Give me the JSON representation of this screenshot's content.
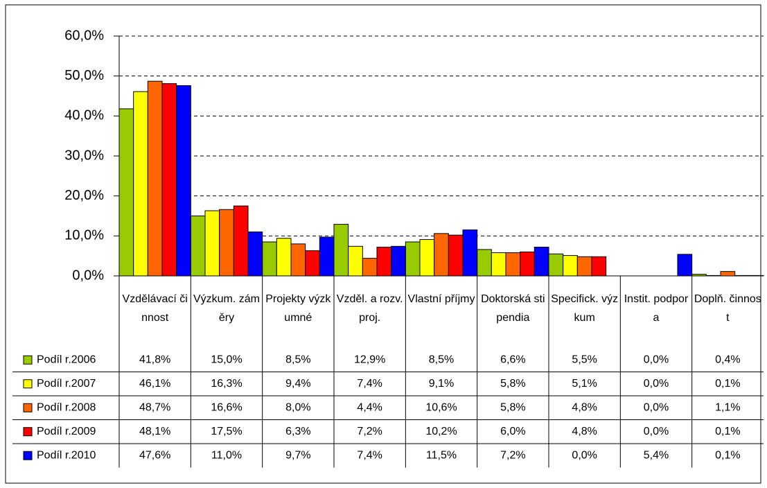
{
  "chart_data": {
    "type": "bar",
    "categories": [
      "Vzdělávací činnost",
      "Výzkum. záměry",
      "Projekty výzkumné",
      "Vzděl. a rozv. proj.",
      "Vlastní příjmy",
      "Doktorská stipendia",
      "Specifick. výzkum",
      "Instit. podpora",
      "Doplň. činnost"
    ],
    "series": [
      {
        "name": "Podíl r.2006",
        "color": "#99cc00",
        "values": [
          41.8,
          15.0,
          8.5,
          12.9,
          8.5,
          6.6,
          5.5,
          0.0,
          0.4
        ],
        "value_labels": [
          "41,8%",
          "15,0%",
          "8,5%",
          "12,9%",
          "8,5%",
          "6,6%",
          "5,5%",
          "0,0%",
          "0,4%"
        ]
      },
      {
        "name": "Podíl r.2007",
        "color": "#ffff00",
        "values": [
          46.1,
          16.3,
          9.4,
          7.4,
          9.1,
          5.8,
          5.1,
          0.0,
          0.1
        ],
        "value_labels": [
          "46,1%",
          "16,3%",
          "9,4%",
          "7,4%",
          "9,1%",
          "5,8%",
          "5,1%",
          "0,0%",
          "0,1%"
        ]
      },
      {
        "name": "Podíl r.2008",
        "color": "#ff6600",
        "values": [
          48.7,
          16.6,
          8.0,
          4.4,
          10.6,
          5.8,
          4.8,
          0.0,
          1.1
        ],
        "value_labels": [
          "48,7%",
          "16,6%",
          "8,0%",
          "4,4%",
          "10,6%",
          "5,8%",
          "4,8%",
          "0,0%",
          "1,1%"
        ]
      },
      {
        "name": "Podíl r.2009",
        "color": "#ff0000",
        "values": [
          48.1,
          17.5,
          6.3,
          7.2,
          10.2,
          6.0,
          4.8,
          0.0,
          0.1
        ],
        "value_labels": [
          "48,1%",
          "17,5%",
          "6,3%",
          "7,2%",
          "10,2%",
          "6,0%",
          "4,8%",
          "0,0%",
          "0,1%"
        ]
      },
      {
        "name": "Podíl r.2010",
        "color": "#0000ff",
        "values": [
          47.6,
          11.0,
          9.7,
          7.4,
          11.5,
          7.2,
          0.0,
          5.4,
          0.1
        ],
        "value_labels": [
          "47,6%",
          "11,0%",
          "9,7%",
          "7,4%",
          "11,5%",
          "7,2%",
          "0,0%",
          "5,4%",
          "0,1%"
        ]
      }
    ],
    "ylim": [
      0,
      60
    ],
    "yticks": [
      {
        "value": 0,
        "label": "0,0%"
      },
      {
        "value": 10,
        "label": "10,0%"
      },
      {
        "value": 20,
        "label": "20,0%"
      },
      {
        "value": 30,
        "label": "30,0%"
      },
      {
        "value": 40,
        "label": "40,0%"
      },
      {
        "value": 50,
        "label": "50,0%"
      },
      {
        "value": 60,
        "label": "60,0%"
      }
    ],
    "grid": true
  }
}
